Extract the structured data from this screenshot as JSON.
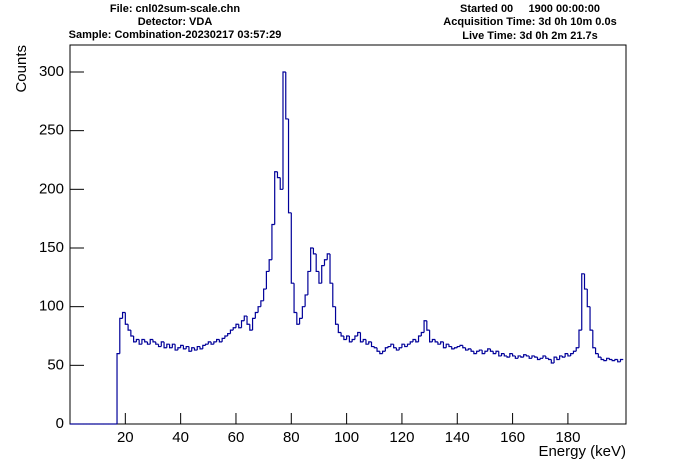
{
  "chart_data": {
    "type": "histogram",
    "annotations": [
      "File: cnl02sum-scale.chn",
      "Detector: VDA",
      "Sample: Combination-20230217 03:57:29",
      "Started 00     1900 00:00:00",
      "Acquisition Time: 3d 0h 10m 0.0s",
      "Live Time: 3d 0h 2m 21.7s"
    ],
    "xlabel": "Energy (keV)",
    "ylabel": "Counts",
    "color": "#000099",
    "xlim": [
      0,
      201
    ],
    "ylim": [
      0,
      323
    ],
    "xticks": [
      20,
      40,
      60,
      80,
      100,
      120,
      140,
      160,
      180
    ],
    "yticks": [
      0,
      50,
      100,
      150,
      200,
      250,
      300
    ],
    "bins": [
      0,
      1,
      2,
      3,
      4,
      5,
      6,
      7,
      8,
      9,
      10,
      11,
      12,
      13,
      14,
      15,
      16,
      17,
      18,
      19,
      20,
      21,
      22,
      23,
      24,
      25,
      26,
      27,
      28,
      29,
      30,
      31,
      32,
      33,
      34,
      35,
      36,
      37,
      38,
      39,
      40,
      41,
      42,
      43,
      44,
      45,
      46,
      47,
      48,
      49,
      50,
      51,
      52,
      53,
      54,
      55,
      56,
      57,
      58,
      59,
      60,
      61,
      62,
      63,
      64,
      65,
      66,
      67,
      68,
      69,
      70,
      71,
      72,
      73,
      74,
      75,
      76,
      77,
      78,
      79,
      80,
      81,
      82,
      83,
      84,
      85,
      86,
      87,
      88,
      89,
      90,
      91,
      92,
      93,
      94,
      95,
      96,
      97,
      98,
      99,
      100,
      101,
      102,
      103,
      104,
      105,
      106,
      107,
      108,
      109,
      110,
      111,
      112,
      113,
      114,
      115,
      116,
      117,
      118,
      119,
      120,
      121,
      122,
      123,
      124,
      125,
      126,
      127,
      128,
      129,
      130,
      131,
      132,
      133,
      134,
      135,
      136,
      137,
      138,
      139,
      140,
      141,
      142,
      143,
      144,
      145,
      146,
      147,
      148,
      149,
      150,
      151,
      152,
      153,
      154,
      155,
      156,
      157,
      158,
      159,
      160,
      161,
      162,
      163,
      164,
      165,
      166,
      167,
      168,
      169,
      170,
      171,
      172,
      173,
      174,
      175,
      176,
      177,
      178,
      179,
      180,
      181,
      182,
      183,
      184,
      185,
      186,
      187,
      188,
      189,
      190,
      191,
      192,
      193,
      194,
      195,
      196,
      197,
      198,
      199,
      200
    ],
    "counts": [
      0,
      0,
      0,
      0,
      0,
      0,
      0,
      0,
      0,
      0,
      0,
      0,
      0,
      0,
      0,
      0,
      0,
      60,
      90,
      95,
      85,
      80,
      75,
      70,
      72,
      68,
      72,
      70,
      68,
      72,
      70,
      68,
      66,
      70,
      65,
      68,
      65,
      68,
      63,
      65,
      67,
      64,
      66,
      62,
      65,
      63,
      66,
      64,
      67,
      68,
      70,
      68,
      70,
      72,
      70,
      73,
      75,
      77,
      80,
      82,
      85,
      82,
      88,
      92,
      85,
      80,
      90,
      95,
      100,
      105,
      115,
      130,
      140,
      170,
      215,
      210,
      200,
      300,
      260,
      180,
      120,
      95,
      85,
      90,
      100,
      110,
      130,
      150,
      145,
      130,
      120,
      135,
      140,
      145,
      120,
      100,
      85,
      78,
      75,
      72,
      75,
      70,
      72,
      75,
      78,
      70,
      72,
      68,
      70,
      66,
      65,
      62,
      60,
      62,
      65,
      66,
      68,
      65,
      63,
      65,
      68,
      66,
      68,
      70,
      72,
      70,
      75,
      78,
      88,
      80,
      70,
      72,
      70,
      68,
      70,
      65,
      68,
      66,
      64,
      65,
      66,
      67,
      65,
      63,
      64,
      62,
      60,
      62,
      63,
      60,
      62,
      64,
      62,
      60,
      62,
      58,
      60,
      58,
      57,
      60,
      58,
      56,
      58,
      57,
      59,
      58,
      56,
      58,
      57,
      55,
      56,
      58,
      56,
      55,
      52,
      57,
      55,
      58,
      57,
      60,
      58,
      60,
      62,
      65,
      80,
      128,
      115,
      100,
      80,
      65,
      60,
      57,
      55,
      54,
      56,
      55,
      54,
      55,
      53,
      55
    ]
  }
}
